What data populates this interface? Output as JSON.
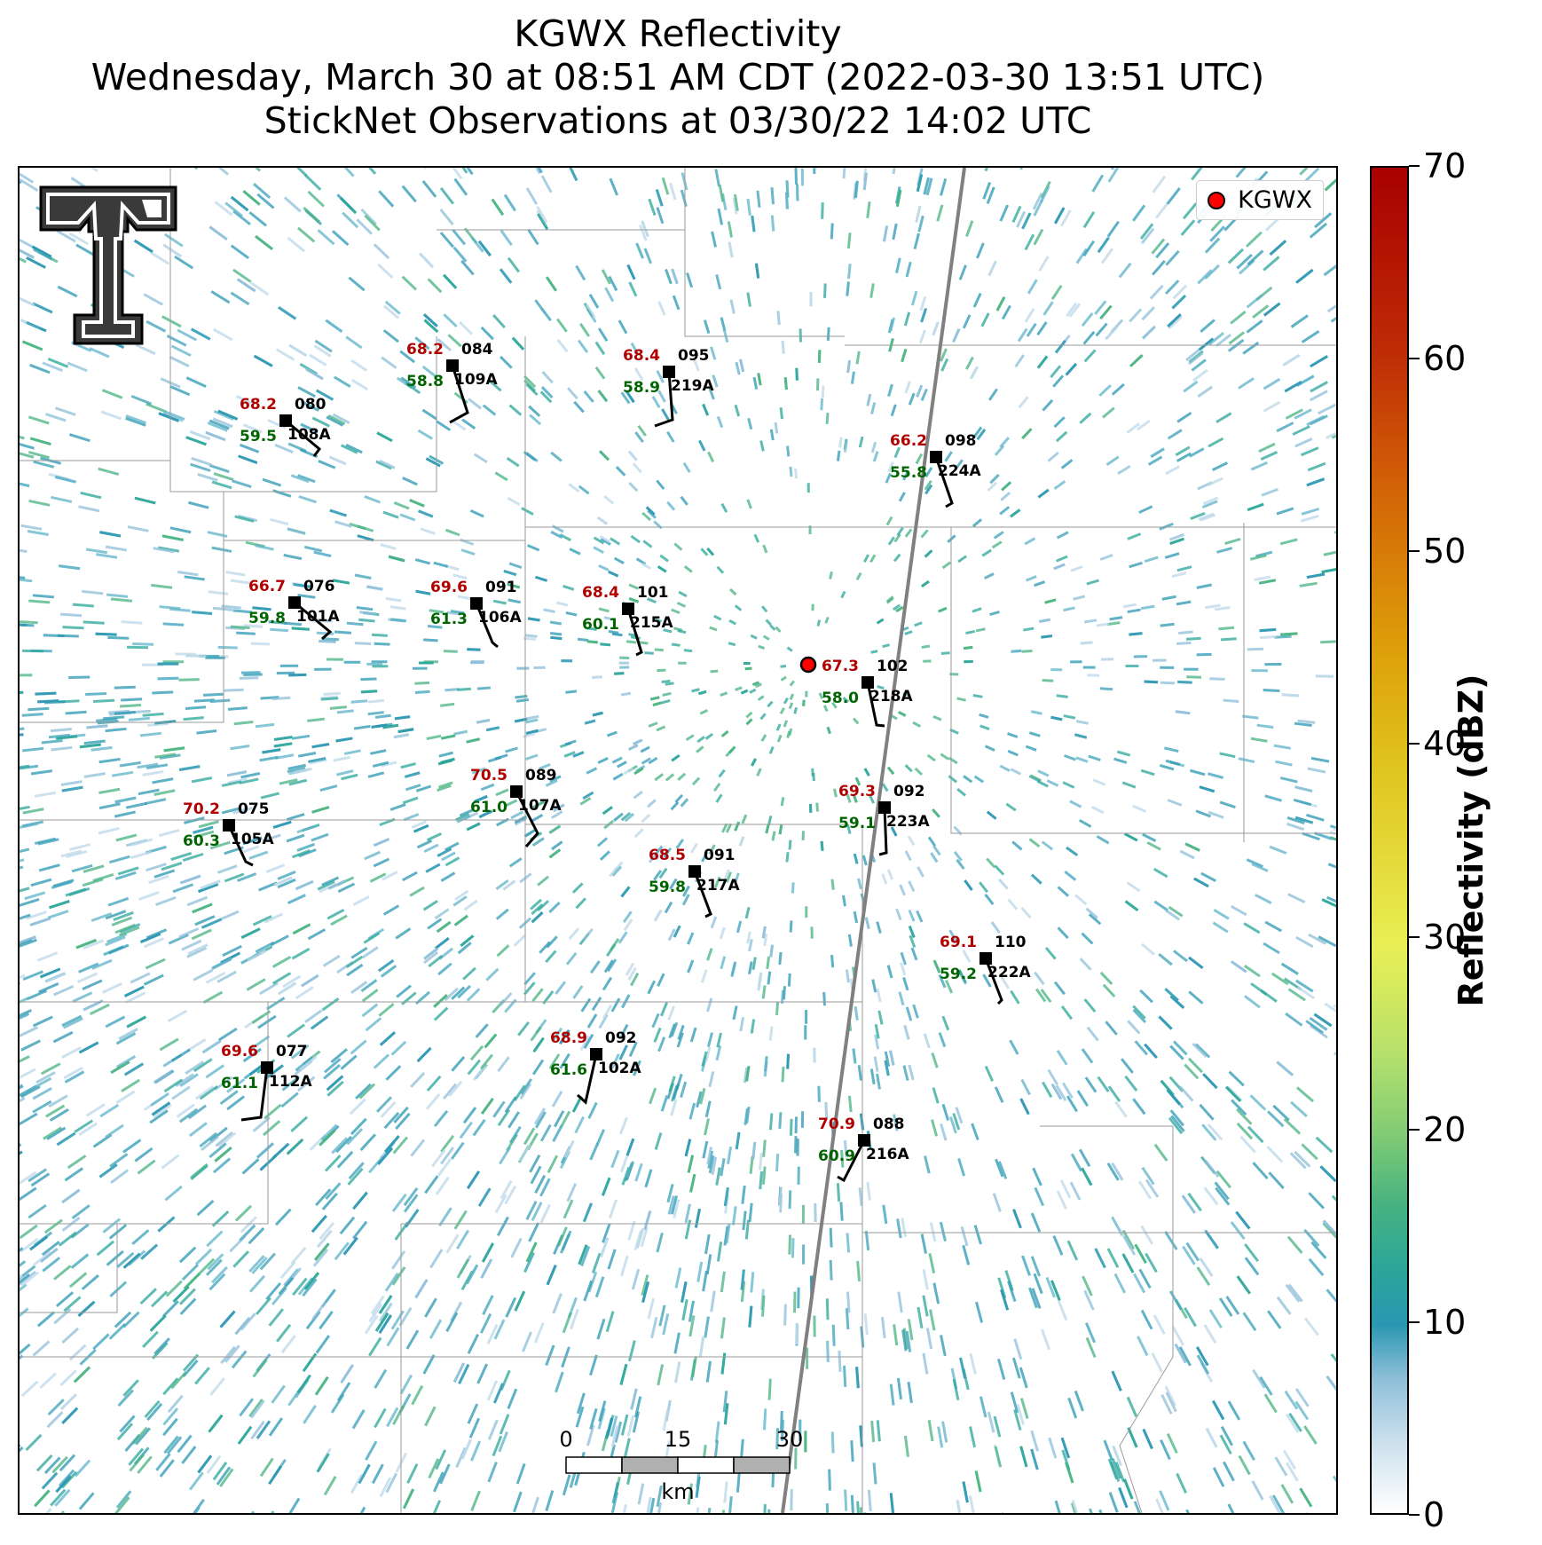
{
  "title": {
    "line1": "KGWX Reflectivity",
    "line2": "Wednesday, March 30 at 08:51 AM CDT (2022-03-30 13:51 UTC)",
    "line3": "StickNet Observations at 03/30/22 14:02 UTC"
  },
  "legend": {
    "label": "KGWX"
  },
  "colorbar": {
    "label": "Reflectivity (dBZ)",
    "ticks": [
      "0",
      "10",
      "20",
      "30",
      "40",
      "50",
      "60",
      "70"
    ],
    "range": [
      0,
      70
    ],
    "colors": {
      "low": "#ffffff",
      "mid": "#2a97b1",
      "green": "#7fcb74",
      "yellow": "#e0c21c",
      "orange": "#d36407",
      "high": "#a80000"
    }
  },
  "scalebar": {
    "labels": [
      "0",
      "15",
      "30"
    ],
    "unit": "km"
  },
  "colors": {
    "temperature": "#b00000",
    "dewpoint": "#006400",
    "station": "#000000",
    "radar": "#ff0000"
  },
  "stations": [
    {
      "id": "108A",
      "temp": "68.2",
      "dew": "59.5",
      "dir": "080"
    },
    {
      "id": "109A",
      "temp": "68.2",
      "dew": "58.8",
      "dir": "084"
    },
    {
      "id": "219A",
      "temp": "68.4",
      "dew": "58.9",
      "dir": "095"
    },
    {
      "id": "224A",
      "temp": "66.2",
      "dew": "55.8",
      "dir": "098"
    },
    {
      "id": "101A",
      "temp": "66.7",
      "dew": "59.8",
      "dir": "076"
    },
    {
      "id": "106A",
      "temp": "69.6",
      "dew": "61.3",
      "dir": "091"
    },
    {
      "id": "215A",
      "temp": "68.4",
      "dew": "60.1",
      "dir": "101"
    },
    {
      "id": "218A",
      "temp": "67.3",
      "dew": "58.0",
      "dir": "102"
    },
    {
      "id": "107A",
      "temp": "70.5",
      "dew": "61.0",
      "dir": "089"
    },
    {
      "id": "105A",
      "temp": "70.2",
      "dew": "60.3",
      "dir": "075"
    },
    {
      "id": "223A",
      "temp": "69.3",
      "dew": "59.1",
      "dir": "092"
    },
    {
      "id": "217A",
      "temp": "68.5",
      "dew": "59.8",
      "dir": "091"
    },
    {
      "id": "222A",
      "temp": "69.1",
      "dew": "59.2",
      "dir": "110"
    },
    {
      "id": "112A",
      "temp": "69.6",
      "dew": "61.1",
      "dir": "077"
    },
    {
      "id": "102A",
      "temp": "68.9",
      "dew": "61.6",
      "dir": "092"
    },
    {
      "id": "216A",
      "temp": "70.9",
      "dew": "60.9",
      "dir": "088"
    }
  ]
}
